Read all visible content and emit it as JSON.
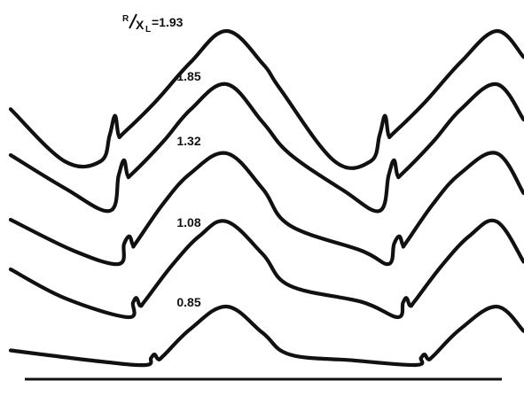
{
  "chart_data": {
    "type": "line",
    "title": "",
    "xlabel": "",
    "ylabel": "",
    "parameter_label": {
      "prefix": "R",
      "den": "X",
      "sub": "L",
      "eq": "="
    },
    "grid": false,
    "legend": "none",
    "series": [
      {
        "name": "1.93",
        "x": [
          0,
          0.3,
          0.5,
          0.55,
          0.58,
          0.6,
          0.63,
          0.8,
          1.0,
          1.2,
          1.4,
          1.5,
          1.8,
          2.0,
          2.05,
          2.08,
          2.1,
          2.13,
          2.3,
          2.5,
          2.7,
          2.85
        ],
        "y": [
          0.4,
          0.0,
          0.0,
          0.2,
          0.35,
          0.2,
          0.22,
          0.45,
          0.76,
          1.0,
          0.75,
          0.55,
          0.0,
          0.0,
          0.2,
          0.35,
          0.2,
          0.22,
          0.45,
          0.76,
          1.0,
          0.8
        ]
      },
      {
        "name": "1.85",
        "x": [
          0,
          0.3,
          0.55,
          0.6,
          0.63,
          0.65,
          0.68,
          0.85,
          1.0,
          1.2,
          1.4,
          1.55,
          1.85,
          2.05,
          2.1,
          2.13,
          2.15,
          2.18,
          2.35,
          2.5,
          2.7,
          2.85
        ],
        "y": [
          0.44,
          0.18,
          0.0,
          0.28,
          0.4,
          0.28,
          0.3,
          0.55,
          0.8,
          1.0,
          0.7,
          0.45,
          0.16,
          0.0,
          0.28,
          0.4,
          0.28,
          0.3,
          0.55,
          0.8,
          1.0,
          0.72
        ]
      },
      {
        "name": "1.32",
        "x": [
          0,
          0.35,
          0.6,
          0.63,
          0.66,
          0.68,
          0.7,
          0.85,
          1.0,
          1.2,
          1.4,
          1.55,
          1.95,
          2.1,
          2.13,
          2.16,
          2.18,
          2.2,
          2.35,
          2.5,
          2.7,
          2.85
        ],
        "y": [
          0.4,
          0.12,
          0.0,
          0.18,
          0.25,
          0.17,
          0.2,
          0.55,
          0.82,
          1.0,
          0.68,
          0.35,
          0.12,
          0.0,
          0.18,
          0.25,
          0.17,
          0.2,
          0.55,
          0.82,
          1.0,
          0.64
        ]
      },
      {
        "name": "1.08",
        "x": [
          0,
          0.3,
          0.65,
          0.68,
          0.7,
          0.72,
          0.75,
          0.9,
          1.05,
          1.2,
          1.4,
          1.55,
          1.95,
          2.15,
          2.18,
          2.2,
          2.22,
          2.25,
          2.4,
          2.55,
          2.7,
          2.85
        ],
        "y": [
          0.5,
          0.2,
          0.0,
          0.15,
          0.2,
          0.12,
          0.18,
          0.55,
          0.85,
          1.0,
          0.66,
          0.33,
          0.16,
          0.0,
          0.15,
          0.2,
          0.12,
          0.18,
          0.55,
          0.85,
          1.0,
          0.58
        ]
      },
      {
        "name": "0.85",
        "x": [
          0,
          0.5,
          0.75,
          0.78,
          0.8,
          0.82,
          0.85,
          1.0,
          1.2,
          1.4,
          1.55,
          1.9,
          2.25,
          2.28,
          2.3,
          2.32,
          2.35,
          2.5,
          2.7,
          2.85
        ],
        "y": [
          0.25,
          0.06,
          0.0,
          0.12,
          0.18,
          0.1,
          0.16,
          0.62,
          1.0,
          0.55,
          0.18,
          0.08,
          0.0,
          0.12,
          0.18,
          0.1,
          0.16,
          0.62,
          1.0,
          0.58
        ]
      }
    ]
  }
}
